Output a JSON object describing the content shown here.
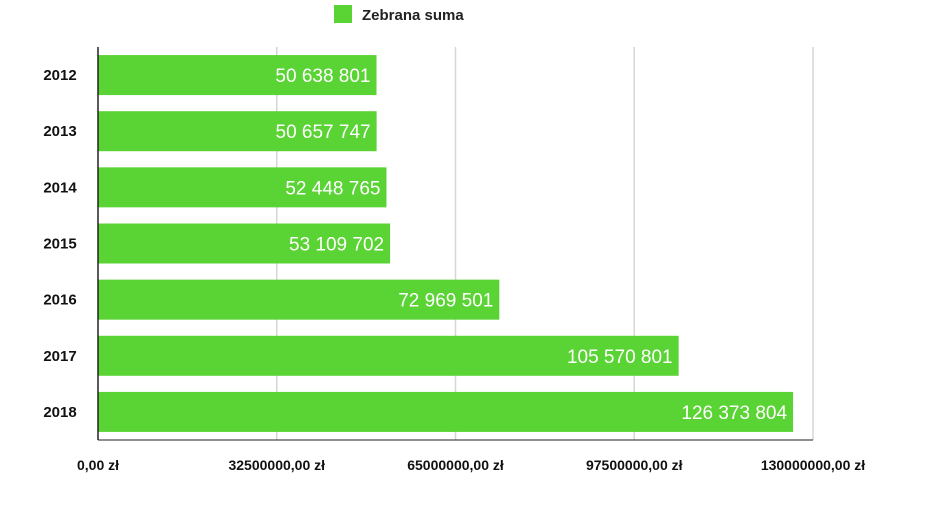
{
  "chart_data": {
    "type": "bar",
    "orientation": "horizontal",
    "legend": {
      "label": "Zebrana suma",
      "placement": "top-center"
    },
    "categories": [
      "2012",
      "2013",
      "2014",
      "2015",
      "2016",
      "2017",
      "2018"
    ],
    "series": [
      {
        "name": "Zebrana suma",
        "color": "#5ad334",
        "values": [
          50638801,
          50657747,
          52448765,
          53109702,
          72969501,
          105570801,
          126373804
        ],
        "value_labels": [
          "50 638 801",
          "50 657 747",
          "52 448 765",
          "53 109 702",
          "72 969 501",
          "105 570 801",
          "126 373 804"
        ]
      }
    ],
    "x_ticks": [
      0,
      32500000,
      65000000,
      97500000,
      130000000
    ],
    "x_tick_labels": [
      "0,00 zł",
      "32500000,00 zł",
      "65000000,00 zł",
      "97500000,00 zł",
      "130000000,00 zł"
    ],
    "xlim": [
      0,
      130000000
    ],
    "grid": "vertical",
    "title": "",
    "xlabel": "",
    "ylabel": ""
  }
}
